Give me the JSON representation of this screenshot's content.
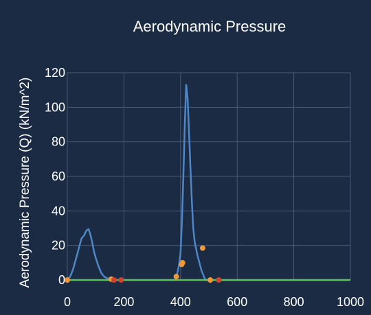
{
  "chart_data": {
    "type": "line",
    "title": "Aerodynamic Pressure",
    "xlabel": "",
    "ylabel": "Aerodynamic Pressure (Q) (kN/m^2)",
    "xlim": [
      0,
      1000
    ],
    "ylim": [
      0,
      120
    ],
    "x_ticks": [
      0,
      200,
      400,
      600,
      800,
      1000
    ],
    "y_ticks": [
      0,
      20,
      40,
      60,
      80,
      100,
      120
    ],
    "grid": true,
    "colors": {
      "background": "#1c2b44",
      "grid": "#4a5a74",
      "line": "#4f86c6",
      "baseline": "#5cc05c",
      "event_orange": "#f0973a",
      "event_red": "#d0432f"
    },
    "series": [
      {
        "x": [
          0,
          10,
          20,
          30,
          40,
          50,
          55,
          60,
          65,
          70,
          75,
          80,
          85,
          90,
          95,
          100,
          110,
          120,
          130,
          140,
          150,
          160,
          165,
          380,
          385,
          390,
          395,
          400,
          405,
          410,
          415,
          420,
          425,
          430,
          435,
          440,
          445,
          450,
          455,
          460,
          465,
          470,
          475,
          480,
          485,
          490,
          495,
          500,
          1000
        ],
        "y": [
          0,
          2,
          6,
          12,
          18,
          24,
          25,
          26,
          28,
          29,
          29.5,
          27,
          24,
          20,
          16,
          13,
          8,
          4,
          2,
          1,
          0.5,
          0,
          0,
          0,
          2,
          5,
          9,
          16,
          35,
          60,
          90,
          113,
          105,
          85,
          65,
          45,
          30,
          22,
          18,
          14,
          11,
          8,
          5,
          3,
          1,
          0,
          0,
          0,
          0
        ]
      },
      {
        "x": [
          0,
          1000
        ],
        "y": [
          0,
          0
        ]
      }
    ],
    "events": [
      {
        "x": 0,
        "y": 0,
        "kind": "orange"
      },
      {
        "x": 155,
        "y": 0.5,
        "kind": "orange"
      },
      {
        "x": 165,
        "y": 0,
        "kind": "red"
      },
      {
        "x": 190,
        "y": 0,
        "kind": "red"
      },
      {
        "x": 385,
        "y": 2,
        "kind": "orange"
      },
      {
        "x": 404,
        "y": 9,
        "kind": "orange"
      },
      {
        "x": 407,
        "y": 10,
        "kind": "orange"
      },
      {
        "x": 478,
        "y": 18.5,
        "kind": "orange"
      },
      {
        "x": 505,
        "y": 0,
        "kind": "orange"
      },
      {
        "x": 535,
        "y": 0,
        "kind": "red"
      }
    ]
  }
}
